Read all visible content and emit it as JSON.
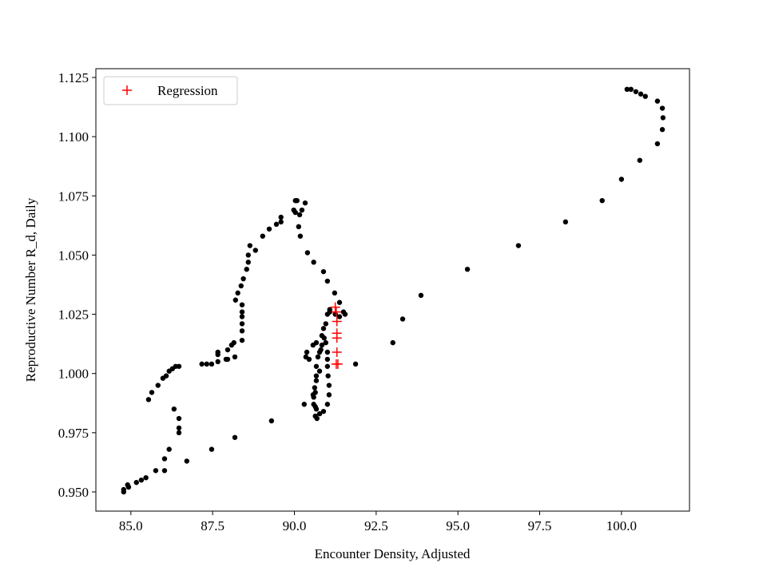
{
  "chart_data": {
    "type": "scatter",
    "x_label": "Encounter Density, Adjusted",
    "y_label": "Reproductive Number R_d, Daily",
    "xlim": [
      83.93,
      102.08
    ],
    "ylim": [
      0.9419,
      1.1287
    ],
    "xticks": [
      {
        "value": 85,
        "label": "85.0"
      },
      87.5,
      {
        "value": 90,
        "label": "90.0"
      },
      92.5,
      {
        "value": 95,
        "label": "95.0"
      },
      97.5,
      {
        "value": 100,
        "label": "100.0"
      }
    ],
    "yticks": [
      {
        "value": 0.95,
        "label": "0.950"
      },
      0.975,
      {
        "value": 1.0,
        "label": "1.000"
      },
      1.025,
      {
        "value": 1.05,
        "label": "1.050"
      },
      1.075,
      {
        "value": 1.1,
        "label": "1.100"
      },
      1.125
    ],
    "grid": false,
    "legend": "upper left",
    "series": [
      {
        "color": "#000000",
        "marker": "o",
        "x": [
          84.78,
          84.78,
          84.9,
          84.93,
          85.17,
          85.32,
          85.46,
          85.76,
          86.03,
          86.03,
          86.17,
          86.47,
          86.47,
          86.47,
          86.32,
          86.71,
          87.47,
          88.18,
          89.3,
          90.3,
          85.54,
          85.64,
          85.83,
          85.98,
          86.08,
          86.17,
          86.27,
          86.37,
          86.47,
          87.17,
          87.32,
          87.47,
          87.66,
          87.66,
          87.66,
          87.91,
          87.96,
          87.96,
          88.08,
          88.15,
          88.18,
          88.4,
          88.4,
          88.4,
          88.4,
          88.4,
          88.4,
          88.2,
          88.27,
          88.37,
          88.44,
          88.54,
          88.59,
          88.59,
          88.64,
          88.81,
          89.03,
          89.23,
          89.45,
          89.59,
          89.59,
          90.03,
          90.08,
          89.98,
          90.03,
          90.16,
          90.23,
          90.33,
          90.13,
          90.18,
          90.4,
          90.59,
          90.89,
          91.01,
          91.23,
          91.38,
          91.08,
          91.01,
          90.96,
          90.89,
          90.84,
          90.84,
          90.77,
          90.72,
          90.67,
          90.67,
          90.64,
          90.59,
          90.64,
          90.64,
          90.69,
          90.77,
          90.89,
          91.01,
          91.06,
          91.06,
          91.03,
          91.01,
          91.01,
          91.01,
          90.96,
          90.91,
          90.81,
          90.77,
          90.67,
          90.62,
          90.57,
          90.59,
          90.67,
          90.45,
          90.35,
          90.38,
          90.57,
          90.67,
          91.08,
          91.25,
          91.38,
          91.55,
          91.5,
          91.87,
          93.01,
          93.31,
          93.87,
          95.29,
          96.85,
          98.29,
          99.41,
          100.0,
          100.56,
          101.1,
          101.25,
          101.27,
          101.25,
          101.1,
          100.73,
          100.59,
          100.44,
          100.29,
          100.17
        ],
        "values": [
          0.95,
          0.951,
          0.953,
          0.952,
          0.954,
          0.955,
          0.956,
          0.959,
          0.959,
          0.964,
          0.968,
          0.975,
          0.977,
          0.981,
          0.985,
          0.963,
          0.968,
          0.973,
          0.98,
          0.987,
          0.989,
          0.992,
          0.995,
          0.998,
          0.999,
          1.001,
          1.002,
          1.003,
          1.003,
          1.004,
          1.004,
          1.004,
          1.005,
          1.008,
          1.009,
          1.006,
          1.006,
          1.01,
          1.012,
          1.013,
          1.007,
          1.014,
          1.018,
          1.021,
          1.024,
          1.026,
          1.029,
          1.031,
          1.034,
          1.037,
          1.04,
          1.044,
          1.047,
          1.05,
          1.054,
          1.052,
          1.058,
          1.061,
          1.063,
          1.064,
          1.066,
          1.073,
          1.073,
          1.069,
          1.068,
          1.067,
          1.069,
          1.072,
          1.062,
          1.058,
          1.051,
          1.047,
          1.043,
          1.039,
          1.034,
          1.03,
          1.027,
          1.025,
          1.021,
          1.019,
          1.016,
          1.012,
          1.009,
          1.007,
          1.003,
          0.999,
          0.992,
          0.99,
          0.986,
          0.982,
          0.981,
          0.983,
          0.984,
          0.987,
          0.991,
          0.995,
          0.999,
          1.003,
          1.006,
          1.009,
          1.013,
          1.015,
          1.01,
          1.001,
          0.997,
          0.994,
          0.991,
          0.987,
          0.985,
          1.006,
          1.007,
          1.009,
          1.012,
          1.013,
          1.026,
          1.025,
          1.024,
          1.025,
          1.026,
          1.004,
          1.013,
          1.023,
          1.033,
          1.044,
          1.054,
          1.064,
          1.073,
          1.082,
          1.09,
          1.097,
          1.103,
          1.108,
          1.112,
          1.115,
          1.117,
          1.118,
          1.119,
          1.12,
          1.12
        ]
      },
      {
        "name": "Regression",
        "color": "#ff0000",
        "marker": "+",
        "x": [
          91.25,
          91.28,
          91.3,
          91.3,
          91.3,
          91.3,
          91.28,
          91.33
        ],
        "values": [
          1.028,
          1.026,
          1.022,
          1.017,
          1.015,
          1.009,
          1.004,
          1.004
        ]
      }
    ]
  }
}
